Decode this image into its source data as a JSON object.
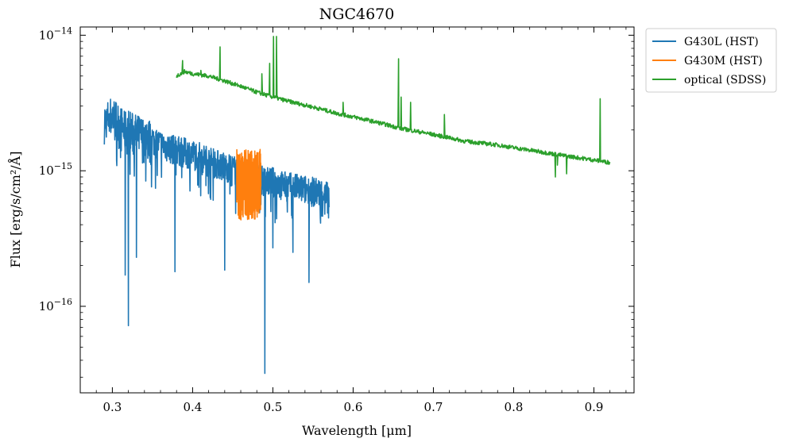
{
  "chart_data": {
    "type": "line",
    "title": "NGC4670",
    "xlabel": "Wavelength [μm]",
    "ylabel": "Flux [erg/s/cm²/Å]",
    "xlim": [
      0.26,
      0.95
    ],
    "ylim": [
      2.3e-17,
      1.15e-14
    ],
    "yscale": "log",
    "xticks": [
      0.3,
      0.4,
      0.5,
      0.6,
      0.7,
      0.8,
      0.9
    ],
    "xtick_labels": [
      "0.3",
      "0.4",
      "0.5",
      "0.6",
      "0.7",
      "0.8",
      "0.9"
    ],
    "yticks": [
      1e-16,
      1e-15,
      1e-14
    ],
    "ytick_labels": [
      {
        "base": "10",
        "exp": "−16"
      },
      {
        "base": "10",
        "exp": "−15"
      },
      {
        "base": "10",
        "exp": "−14"
      }
    ],
    "legend_position": "outside-upper-right",
    "grid": false,
    "series": [
      {
        "name": "G430L (HST)",
        "color": "#1f77b4",
        "x": [
          0.29,
          0.292,
          0.295,
          0.3,
          0.305,
          0.31,
          0.315,
          0.32,
          0.325,
          0.33,
          0.34,
          0.35,
          0.36,
          0.37,
          0.38,
          0.39,
          0.4,
          0.41,
          0.42,
          0.43,
          0.44,
          0.45,
          0.46,
          0.47,
          0.48,
          0.49,
          0.5,
          0.51,
          0.52,
          0.53,
          0.54,
          0.55,
          0.56,
          0.57
        ],
        "y": [
          2.5e-15,
          2.2e-15,
          2.5e-15,
          2.6e-15,
          2.4e-15,
          2.2e-15,
          2e-15,
          2.1e-15,
          1.95e-15,
          1.9e-15,
          1.8e-15,
          1.7e-15,
          1.6e-15,
          1.5e-15,
          1.45e-15,
          1.4e-15,
          1.35e-15,
          1.3e-15,
          1.2e-15,
          1.15e-15,
          1.1e-15,
          1.05e-15,
          1e-15,
          9.5e-16,
          9e-16,
          8.5e-16,
          8.5e-16,
          8e-16,
          7.8e-16,
          7.6e-16,
          7.4e-16,
          7.2e-16,
          7e-16,
          6.8e-16
        ],
        "absorption_dips": [
          {
            "x": 0.316,
            "y": 1.7e-16
          },
          {
            "x": 0.32,
            "y": 7.2e-17
          },
          {
            "x": 0.33,
            "y": 2.3e-16
          },
          {
            "x": 0.378,
            "y": 1.8e-16
          },
          {
            "x": 0.44,
            "y": 1.85e-16
          },
          {
            "x": 0.49,
            "y": 3.2e-17
          },
          {
            "x": 0.5,
            "y": 2.7e-16
          },
          {
            "x": 0.545,
            "y": 1.5e-16
          },
          {
            "x": 0.525,
            "y": 2.5e-16
          }
        ]
      },
      {
        "name": "G430M (HST)",
        "color": "#ff7f0e",
        "x": [
          0.455,
          0.46,
          0.465,
          0.47,
          0.475,
          0.48,
          0.485
        ],
        "y": [
          9e-16,
          8.8e-16,
          8.5e-16,
          8.2e-16,
          8e-16,
          7.8e-16,
          7.6e-16
        ],
        "y_min": 4.3e-16,
        "y_max": 1.45e-15
      },
      {
        "name": "optical (SDSS)",
        "color": "#2ca02c",
        "x": [
          0.38,
          0.39,
          0.4,
          0.42,
          0.44,
          0.46,
          0.48,
          0.5,
          0.52,
          0.54,
          0.56,
          0.58,
          0.6,
          0.62,
          0.64,
          0.66,
          0.68,
          0.7,
          0.72,
          0.74,
          0.76,
          0.78,
          0.8,
          0.82,
          0.84,
          0.86,
          0.88,
          0.9,
          0.92
        ],
        "y": [
          5e-15,
          5.4e-15,
          5.2e-15,
          5e-15,
          4.6e-15,
          4.2e-15,
          3.8e-15,
          3.5e-15,
          3.25e-15,
          3.05e-15,
          2.85e-15,
          2.65e-15,
          2.5e-15,
          2.35e-15,
          2.2e-15,
          2.05e-15,
          1.95e-15,
          1.85e-15,
          1.75e-15,
          1.65e-15,
          1.6e-15,
          1.55e-15,
          1.48e-15,
          1.42e-15,
          1.36e-15,
          1.3e-15,
          1.25e-15,
          1.2e-15,
          1.15e-15
        ],
        "emission_lines": [
          {
            "x": 0.3875,
            "y": 6.5e-15
          },
          {
            "x": 0.4103,
            "y": 5.5e-15
          },
          {
            "x": 0.4342,
            "y": 8.2e-15
          },
          {
            "x": 0.4863,
            "y": 5.2e-15
          },
          {
            "x": 0.496,
            "y": 6.2e-15
          },
          {
            "x": 0.5008,
            "y": 9.8e-15
          },
          {
            "x": 0.5045,
            "y": 9.8e-15
          },
          {
            "x": 0.5875,
            "y": 3.2e-15
          },
          {
            "x": 0.6566,
            "y": 6.7e-15
          },
          {
            "x": 0.6598,
            "y": 3.5e-15
          },
          {
            "x": 0.6716,
            "y": 3.2e-15
          },
          {
            "x": 0.7137,
            "y": 2.6e-15
          },
          {
            "x": 0.9078,
            "y": 3.4e-15
          }
        ],
        "absorption_dips": [
          {
            "x": 0.852,
            "y": 9e-16
          },
          {
            "x": 0.866,
            "y": 9.5e-16
          },
          {
            "x": 0.8545,
            "y": 1.1e-15
          }
        ]
      }
    ]
  }
}
